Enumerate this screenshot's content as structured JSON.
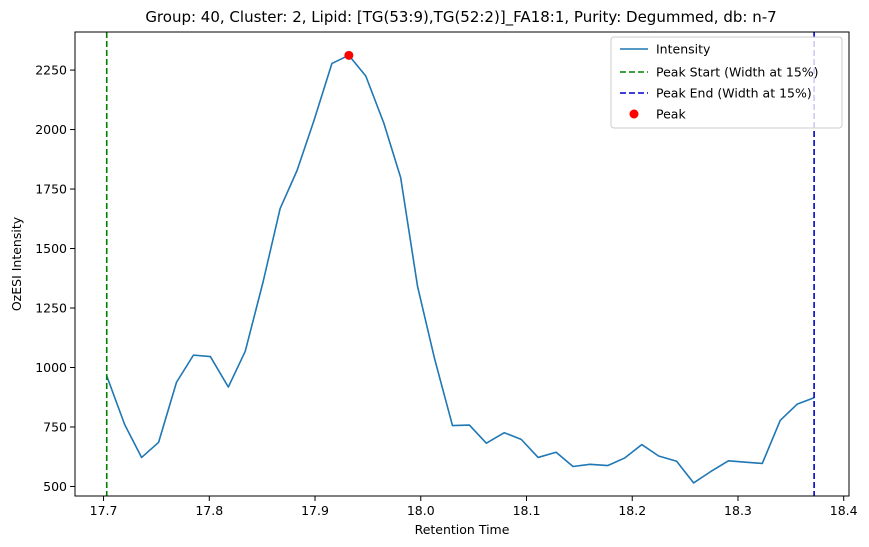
{
  "chart_data": {
    "type": "line",
    "title": "Group: 40, Cluster: 2, Lipid: [TG(53:9),TG(52:2)]_FA18:1, Purity: Degummed, db: n-7",
    "xlabel": "Retention Time",
    "ylabel": "OzESI Intensity",
    "xlim": [
      17.673,
      18.405
    ],
    "ylim": [
      460,
      2410
    ],
    "xticks": [
      17.7,
      17.8,
      17.9,
      18.0,
      18.1,
      18.2,
      18.3,
      18.4
    ],
    "xtick_labels": [
      "17.7",
      "17.8",
      "17.9",
      "18.0",
      "18.1",
      "18.2",
      "18.3",
      "18.4"
    ],
    "yticks": [
      500,
      750,
      1000,
      1250,
      1500,
      1750,
      2000,
      2250
    ],
    "ytick_labels": [
      "500",
      "750",
      "1000",
      "1250",
      "1500",
      "1750",
      "2000",
      "2250"
    ],
    "grid": false,
    "legend_position": "top-right",
    "series": [
      {
        "name": "Intensity",
        "color": "#1f77b4",
        "style": "solid",
        "x": [
          17.703,
          17.72,
          17.736,
          17.752,
          17.769,
          17.785,
          17.801,
          17.818,
          17.834,
          17.851,
          17.867,
          17.883,
          17.899,
          17.916,
          17.932,
          17.948,
          17.965,
          17.981,
          17.997,
          18.013,
          18.03,
          18.046,
          18.062,
          18.079,
          18.095,
          18.111,
          18.128,
          18.144,
          18.16,
          18.177,
          18.193,
          18.209,
          18.225,
          18.242,
          18.258,
          18.274,
          18.291,
          18.307,
          18.323,
          18.34,
          18.356,
          18.372
        ],
        "y": [
          965,
          760,
          622,
          685,
          938,
          1052,
          1046,
          918,
          1068,
          1362,
          1668,
          1828,
          2038,
          2278,
          2312,
          2225,
          2028,
          1798,
          1340,
          1038,
          756,
          758,
          682,
          726,
          698,
          622,
          644,
          584,
          593,
          588,
          620,
          676,
          628,
          606,
          515,
          562,
          608,
          602,
          597,
          778,
          846,
          873
        ]
      },
      {
        "name": "Peak Start (Width at 15%)",
        "color": "#008000",
        "style": "dashed",
        "x_value": 17.703
      },
      {
        "name": "Peak End (Width at 15%)",
        "color": "#0000cc",
        "style": "dashed",
        "x_value": 18.372
      },
      {
        "name": "Peak",
        "color": "#ff0000",
        "style": "marker",
        "x": [
          17.932
        ],
        "y": [
          2312
        ]
      }
    ]
  }
}
